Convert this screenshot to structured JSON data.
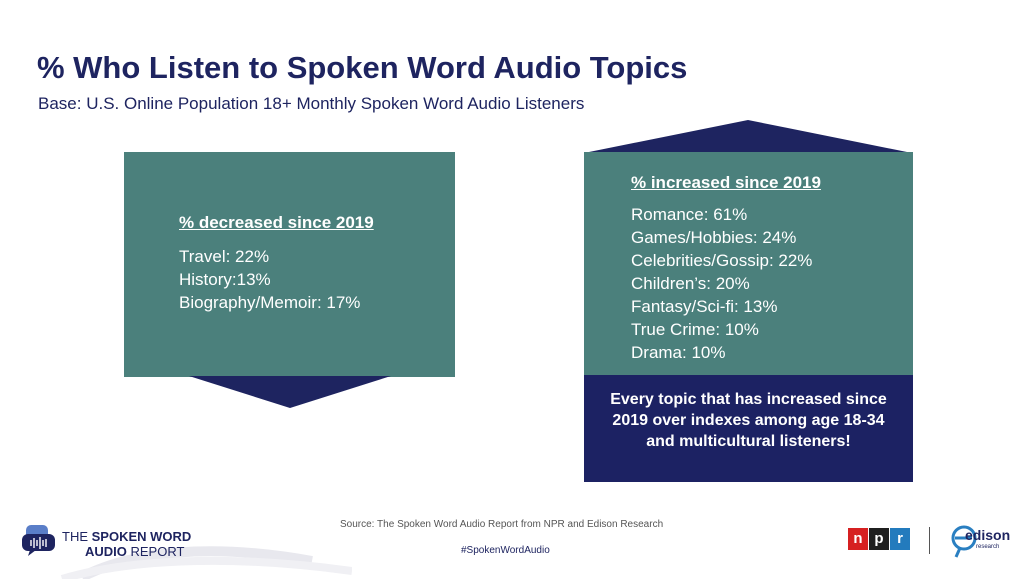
{
  "title": "% Who Listen to Spoken Word Audio Topics",
  "subtitle": "Base: U.S. Online Population 18+ Monthly Spoken Word Audio Listeners",
  "decreased": {
    "heading": "% decreased since 2019",
    "items": [
      "Travel: 22%",
      "History:13%",
      "Biography/Memoir: 17%"
    ]
  },
  "increased": {
    "heading": "% increased since 2019",
    "items": [
      "Romance: 61%",
      "Games/Hobbies: 24%",
      "Celebrities/Gossip: 22%",
      "Children’s: 20%",
      "Fantasy/Sci-fi: 13%",
      "True Crime: 10%",
      "Drama: 10%"
    ],
    "note": "Every topic that has increased since 2019 over indexes among age 18-34 and multicultural listeners!"
  },
  "footer": {
    "source": "Source: The Spoken Word Audio Report from NPR and Edison Research",
    "hashtag": "#SpokenWordAudio",
    "report_logo": {
      "line1_a": "THE ",
      "line1_b": "SPOKEN WORD",
      "line2_a": "AUDIO ",
      "line2_b": "REPORT"
    },
    "npr_letters": [
      "n",
      "p",
      "r"
    ],
    "npr_colors": [
      "#d62021",
      "#1f1f1f",
      "#237bbd"
    ],
    "edison_name": "edison",
    "edison_sub": "research"
  },
  "colors": {
    "navy": "#1e2460",
    "teal": "#4b807c",
    "note_bg": "#1c2263"
  },
  "icons": [
    "speech-bubbles-icon",
    "audio-wave-icon",
    "edison-e-icon"
  ]
}
